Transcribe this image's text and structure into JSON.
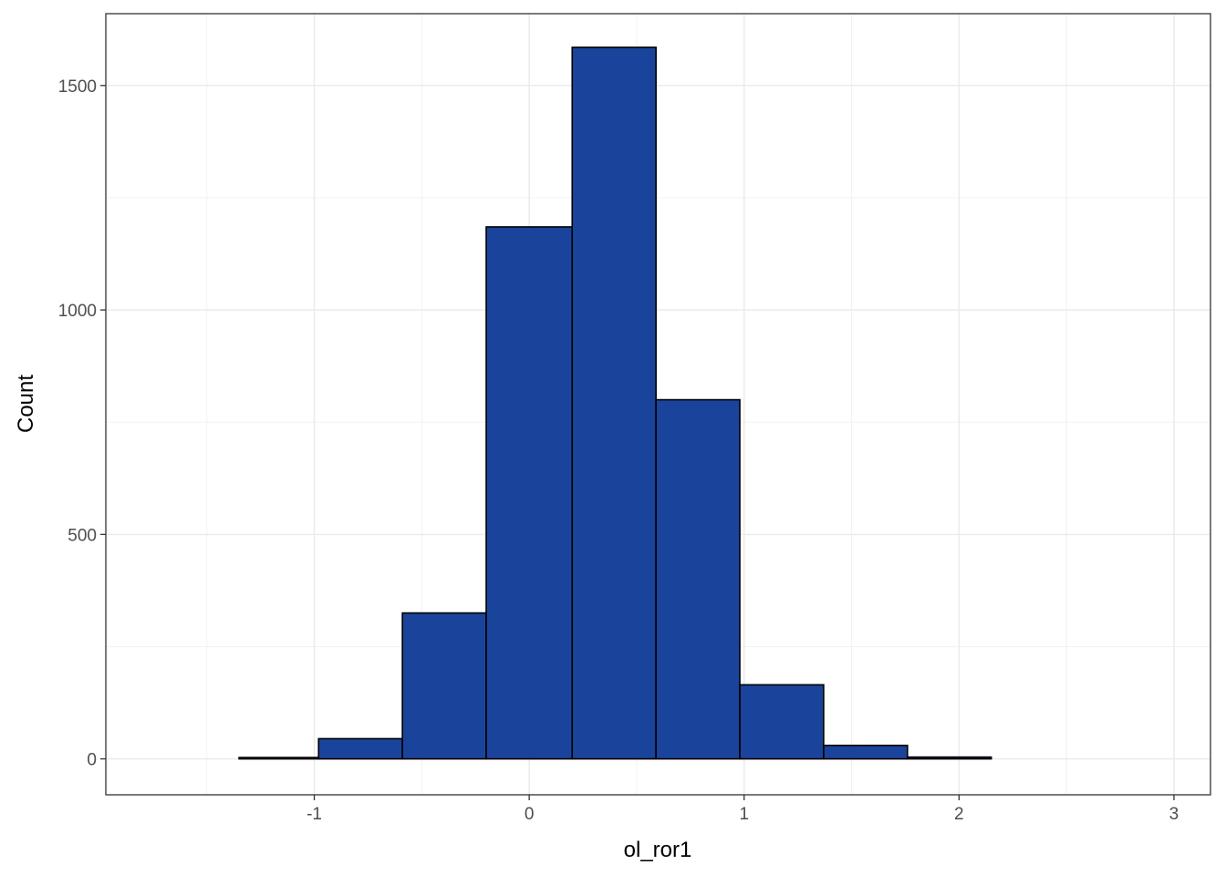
{
  "chart_data": {
    "type": "histogram",
    "title": "",
    "xlabel": "ol_ror1",
    "ylabel": "Count",
    "xlim": [
      -1.97,
      3.17
    ],
    "ylim": [
      -80,
      1660
    ],
    "x_ticks": [
      -1,
      0,
      1,
      2,
      3
    ],
    "y_ticks": [
      0,
      500,
      1000,
      1500
    ],
    "x_tick_labels": [
      "-1",
      "0",
      "1",
      "2",
      "3"
    ],
    "y_tick_labels": [
      "0",
      "500",
      "1000",
      "1500"
    ],
    "grid": true,
    "theme": "bw",
    "fill_color": "#1a449b",
    "outline_color": "#000000",
    "bins": [
      {
        "x0": -1.74,
        "x1": -1.35,
        "count": 0
      },
      {
        "x0": -1.35,
        "x1": -0.98,
        "count": 3
      },
      {
        "x0": -0.98,
        "x1": -0.59,
        "count": 45
      },
      {
        "x0": -0.59,
        "x1": -0.2,
        "count": 325
      },
      {
        "x0": -0.2,
        "x1": 0.2,
        "count": 1185
      },
      {
        "x0": 0.2,
        "x1": 0.59,
        "count": 1585
      },
      {
        "x0": 0.59,
        "x1": 0.98,
        "count": 800
      },
      {
        "x0": 0.98,
        "x1": 1.37,
        "count": 165
      },
      {
        "x0": 1.37,
        "x1": 1.76,
        "count": 30
      },
      {
        "x0": 1.76,
        "x1": 2.15,
        "count": 4
      },
      {
        "x0": 2.15,
        "x1": 2.55,
        "count": 0
      },
      {
        "x0": 2.55,
        "x1": 2.94,
        "count": 0
      }
    ]
  }
}
